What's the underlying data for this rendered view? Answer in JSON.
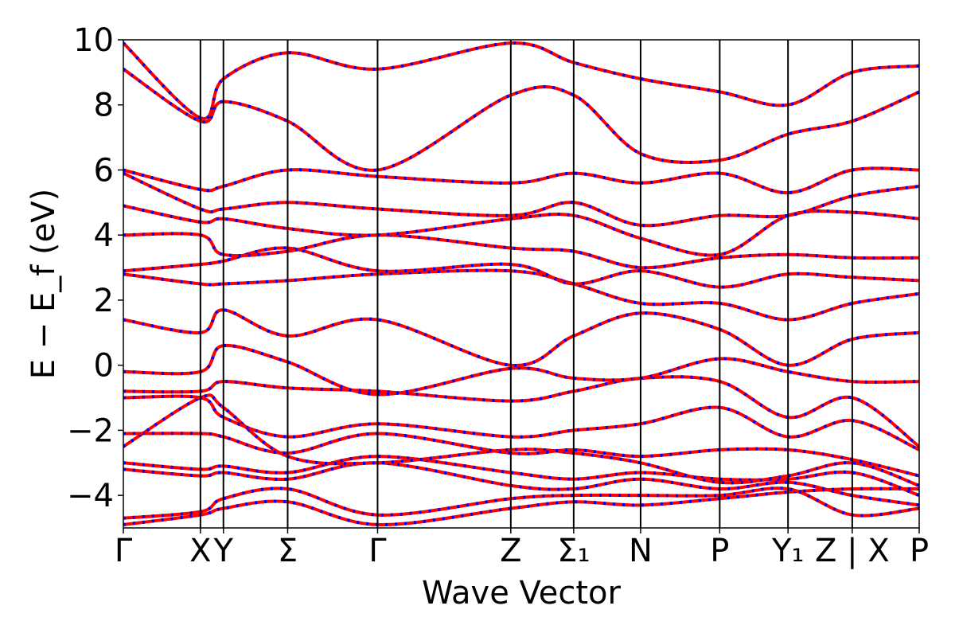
{
  "chart_data": {
    "type": "line",
    "xlabel": "Wave Vector",
    "ylabel": "E − E_f (eV)",
    "ylim": [
      -5,
      10
    ],
    "y_ticks": [
      10,
      8,
      6,
      4,
      2,
      0,
      -2,
      -4
    ],
    "y_tick_labels": [
      "10",
      "8",
      "6",
      "4",
      "2",
      "0",
      "−2",
      "−4"
    ],
    "grid": false,
    "legend": "none",
    "colors": {
      "primary": "#ff0000",
      "secondary": "#0000ff",
      "frame": "#000000"
    },
    "line_styles": {
      "primary": "solid",
      "secondary": "dashed"
    },
    "kpoint_labels": [
      "Γ",
      "X",
      "Y",
      "Σ",
      "Γ",
      "Z",
      "Σ₁",
      "N",
      "P",
      "Y₁",
      "Z | X",
      "P"
    ],
    "kpoint_positions": [
      0,
      0.114,
      0.148,
      0.243,
      0.376,
      0.573,
      0.666,
      0.765,
      0.882,
      0.983,
      1.078,
      1.177
    ],
    "x_range": [
      0,
      1.177
    ],
    "bands": [
      [
        [
          0,
          -4.9
        ],
        [
          0.114,
          -4.6
        ],
        [
          0.148,
          -4.4
        ],
        [
          0.243,
          -4.2
        ],
        [
          0.376,
          -4.9
        ],
        [
          0.573,
          -4.4
        ],
        [
          0.666,
          -4.2
        ],
        [
          0.765,
          -4.3
        ],
        [
          0.882,
          -4.1
        ],
        [
          0.983,
          -3.9
        ],
        [
          1.078,
          -3.8
        ],
        [
          1.177,
          -3.8
        ]
      ],
      [
        [
          0,
          -4.7
        ],
        [
          0.114,
          -4.5
        ],
        [
          0.148,
          -4.1
        ],
        [
          0.243,
          -3.8
        ],
        [
          0.376,
          -4.6
        ],
        [
          0.573,
          -4.1
        ],
        [
          0.666,
          -4.0
        ],
        [
          0.765,
          -4.0
        ],
        [
          0.882,
          -4.0
        ],
        [
          0.983,
          -3.8
        ],
        [
          1.078,
          -4.6
        ],
        [
          1.177,
          -4.4
        ]
      ],
      [
        [
          0,
          -3.2
        ],
        [
          0.114,
          -3.4
        ],
        [
          0.148,
          -3.3
        ],
        [
          0.243,
          -3.5
        ],
        [
          0.376,
          -3.0
        ],
        [
          0.573,
          -3.7
        ],
        [
          0.666,
          -3.8
        ],
        [
          0.765,
          -3.5
        ],
        [
          0.882,
          -3.8
        ],
        [
          0.983,
          -3.6
        ],
        [
          1.078,
          -4.0
        ],
        [
          1.177,
          -4.3
        ]
      ],
      [
        [
          0,
          -3.0
        ],
        [
          0.114,
          -3.2
        ],
        [
          0.148,
          -3.1
        ],
        [
          0.243,
          -3.3
        ],
        [
          0.376,
          -2.8
        ],
        [
          0.573,
          -3.3
        ],
        [
          0.666,
          -3.5
        ],
        [
          0.765,
          -3.3
        ],
        [
          0.882,
          -3.5
        ],
        [
          0.983,
          -3.5
        ],
        [
          1.078,
          -3.3
        ],
        [
          1.177,
          -4.0
        ]
      ],
      [
        [
          0,
          -2.5
        ],
        [
          0.114,
          -1.0
        ],
        [
          0.148,
          -1.3
        ],
        [
          0.243,
          -2.8
        ],
        [
          0.376,
          -3.0
        ],
        [
          0.573,
          -2.6
        ],
        [
          0.666,
          -2.7
        ],
        [
          0.765,
          -3.0
        ],
        [
          0.882,
          -3.6
        ],
        [
          0.983,
          -3.4
        ],
        [
          1.078,
          -3.0
        ],
        [
          1.177,
          -3.7
        ]
      ],
      [
        [
          0,
          -2.1
        ],
        [
          0.114,
          -2.1
        ],
        [
          0.148,
          -2.2
        ],
        [
          0.243,
          -2.7
        ],
        [
          0.376,
          -2.1
        ],
        [
          0.573,
          -2.7
        ],
        [
          0.666,
          -2.6
        ],
        [
          0.765,
          -2.8
        ],
        [
          0.882,
          -2.6
        ],
        [
          0.983,
          -2.6
        ],
        [
          1.078,
          -2.9
        ],
        [
          1.177,
          -3.4
        ]
      ],
      [
        [
          0,
          -1.0
        ],
        [
          0.114,
          -1.0
        ],
        [
          0.148,
          -1.6
        ],
        [
          0.243,
          -2.2
        ],
        [
          0.376,
          -1.8
        ],
        [
          0.573,
          -2.2
        ],
        [
          0.666,
          -2.0
        ],
        [
          0.765,
          -1.8
        ],
        [
          0.882,
          -1.3
        ],
        [
          0.983,
          -2.2
        ],
        [
          1.078,
          -1.7
        ],
        [
          1.177,
          -2.6
        ]
      ],
      [
        [
          0,
          -0.8
        ],
        [
          0.114,
          -0.8
        ],
        [
          0.148,
          -0.5
        ],
        [
          0.243,
          -0.7
        ],
        [
          0.376,
          -0.8
        ],
        [
          0.573,
          -1.1
        ],
        [
          0.666,
          -0.8
        ],
        [
          0.765,
          -0.4
        ],
        [
          0.882,
          -0.5
        ],
        [
          0.983,
          -1.6
        ],
        [
          1.078,
          -1.0
        ],
        [
          1.177,
          -2.5
        ]
      ],
      [
        [
          0,
          -0.2
        ],
        [
          0.114,
          -0.2
        ],
        [
          0.148,
          0.6
        ],
        [
          0.243,
          0.1
        ],
        [
          0.376,
          -0.9
        ],
        [
          0.573,
          -0.1
        ],
        [
          0.666,
          -0.4
        ],
        [
          0.765,
          -0.4
        ],
        [
          0.882,
          0.2
        ],
        [
          0.983,
          -0.2
        ],
        [
          1.078,
          -0.5
        ],
        [
          1.177,
          -0.5
        ]
      ],
      [
        [
          0,
          1.4
        ],
        [
          0.114,
          1.0
        ],
        [
          0.148,
          1.7
        ],
        [
          0.243,
          0.9
        ],
        [
          0.376,
          1.4
        ],
        [
          0.573,
          0.0
        ],
        [
          0.666,
          0.9
        ],
        [
          0.765,
          1.6
        ],
        [
          0.882,
          1.1
        ],
        [
          0.983,
          0.0
        ],
        [
          1.078,
          0.8
        ],
        [
          1.177,
          1.0
        ]
      ],
      [
        [
          0,
          2.8
        ],
        [
          0.114,
          2.5
        ],
        [
          0.148,
          2.5
        ],
        [
          0.243,
          2.6
        ],
        [
          0.376,
          2.8
        ],
        [
          0.573,
          2.9
        ],
        [
          0.666,
          2.5
        ],
        [
          0.765,
          1.9
        ],
        [
          0.882,
          1.9
        ],
        [
          0.983,
          1.4
        ],
        [
          1.078,
          1.9
        ],
        [
          1.177,
          2.2
        ]
      ],
      [
        [
          0,
          2.9
        ],
        [
          0.114,
          3.1
        ],
        [
          0.148,
          3.2
        ],
        [
          0.243,
          3.6
        ],
        [
          0.376,
          2.9
        ],
        [
          0.573,
          3.1
        ],
        [
          0.666,
          2.5
        ],
        [
          0.765,
          2.9
        ],
        [
          0.882,
          2.4
        ],
        [
          0.983,
          2.8
        ],
        [
          1.078,
          2.7
        ],
        [
          1.177,
          2.6
        ]
      ],
      [
        [
          0,
          4.0
        ],
        [
          0.114,
          4.0
        ],
        [
          0.148,
          3.4
        ],
        [
          0.243,
          3.5
        ],
        [
          0.376,
          4.0
        ],
        [
          0.573,
          3.6
        ],
        [
          0.666,
          3.5
        ],
        [
          0.765,
          3.0
        ],
        [
          0.882,
          3.3
        ],
        [
          0.983,
          3.4
        ],
        [
          1.078,
          3.3
        ],
        [
          1.177,
          3.3
        ]
      ],
      [
        [
          0,
          4.9
        ],
        [
          0.114,
          4.4
        ],
        [
          0.148,
          4.5
        ],
        [
          0.243,
          4.2
        ],
        [
          0.376,
          4.0
        ],
        [
          0.573,
          4.5
        ],
        [
          0.666,
          4.6
        ],
        [
          0.765,
          3.9
        ],
        [
          0.882,
          3.4
        ],
        [
          0.983,
          4.6
        ],
        [
          1.078,
          4.7
        ],
        [
          1.177,
          4.5
        ]
      ],
      [
        [
          0,
          5.9
        ],
        [
          0.114,
          4.8
        ],
        [
          0.148,
          4.8
        ],
        [
          0.243,
          5.0
        ],
        [
          0.376,
          4.8
        ],
        [
          0.573,
          4.6
        ],
        [
          0.666,
          5.0
        ],
        [
          0.765,
          4.3
        ],
        [
          0.882,
          4.6
        ],
        [
          0.983,
          4.6
        ],
        [
          1.078,
          5.2
        ],
        [
          1.177,
          5.5
        ]
      ],
      [
        [
          0,
          6.0
        ],
        [
          0.114,
          5.4
        ],
        [
          0.148,
          5.5
        ],
        [
          0.243,
          6.0
        ],
        [
          0.376,
          5.8
        ],
        [
          0.573,
          5.6
        ],
        [
          0.666,
          5.9
        ],
        [
          0.765,
          5.6
        ],
        [
          0.882,
          5.9
        ],
        [
          0.983,
          5.3
        ],
        [
          1.078,
          6.0
        ],
        [
          1.177,
          6.0
        ]
      ],
      [
        [
          0,
          9.1
        ],
        [
          0.114,
          7.5
        ],
        [
          0.148,
          8.1
        ],
        [
          0.243,
          7.5
        ],
        [
          0.376,
          6.0
        ],
        [
          0.573,
          8.3
        ],
        [
          0.666,
          8.3
        ],
        [
          0.765,
          6.5
        ],
        [
          0.882,
          6.3
        ],
        [
          0.983,
          7.1
        ],
        [
          1.078,
          7.5
        ],
        [
          1.177,
          8.4
        ]
      ],
      [
        [
          0,
          9.9
        ],
        [
          0.114,
          7.6
        ],
        [
          0.148,
          8.8
        ],
        [
          0.243,
          9.6
        ],
        [
          0.376,
          9.1
        ],
        [
          0.573,
          9.9
        ],
        [
          0.666,
          9.3
        ],
        [
          0.765,
          8.8
        ],
        [
          0.882,
          8.4
        ],
        [
          0.983,
          8.0
        ],
        [
          1.078,
          9.0
        ],
        [
          1.177,
          9.2
        ]
      ]
    ]
  }
}
